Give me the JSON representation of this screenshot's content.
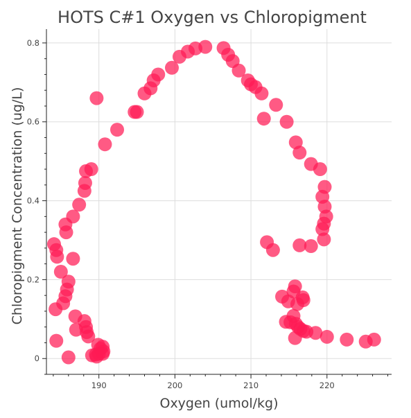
{
  "chart_data": {
    "type": "scatter",
    "title": "HOTS C#1 Oxygen vs Chloropigment",
    "xlabel": "Oxygen (umol/kg)",
    "ylabel": "Chloropigment Concentration (ug/L)",
    "xlim": [
      183.1,
      228.5
    ],
    "ylim": [
      -0.04,
      0.835
    ],
    "x_ticks": [
      190,
      200,
      210,
      220
    ],
    "y_ticks": [
      0,
      0.2,
      0.4,
      0.6,
      0.8
    ],
    "x_tick_labels": [
      "190",
      "200",
      "210",
      "220"
    ],
    "y_tick_labels": [
      "0",
      "0.2",
      "0.4",
      "0.6",
      "0.8"
    ],
    "x_minor_step": 2,
    "y_minor_step": 0.04,
    "grid": true,
    "marker_color": "#ff1a55",
    "marker_opacity": 0.72,
    "series": [
      {
        "name": "",
        "points": [
          [
            186.0,
            0.003
          ],
          [
            189.7,
            0.005
          ],
          [
            189.6,
            0.01
          ],
          [
            190.0,
            0.012
          ],
          [
            190.5,
            0.012
          ],
          [
            190.6,
            0.018
          ],
          [
            190.2,
            0.025
          ],
          [
            189.9,
            0.035
          ],
          [
            190.5,
            0.03
          ],
          [
            189.1,
            0.008
          ],
          [
            188.6,
            0.056
          ],
          [
            188.4,
            0.067
          ],
          [
            188.3,
            0.08
          ],
          [
            188.1,
            0.095
          ],
          [
            187.0,
            0.073
          ],
          [
            186.9,
            0.107
          ],
          [
            184.4,
            0.045
          ],
          [
            184.3,
            0.125
          ],
          [
            185.3,
            0.14
          ],
          [
            185.6,
            0.158
          ],
          [
            185.8,
            0.175
          ],
          [
            186.0,
            0.195
          ],
          [
            185.0,
            0.22
          ],
          [
            186.6,
            0.253
          ],
          [
            184.5,
            0.258
          ],
          [
            184.4,
            0.275
          ],
          [
            184.1,
            0.29
          ],
          [
            185.7,
            0.32
          ],
          [
            185.6,
            0.34
          ],
          [
            186.6,
            0.36
          ],
          [
            187.4,
            0.39
          ],
          [
            188.1,
            0.425
          ],
          [
            188.2,
            0.445
          ],
          [
            188.3,
            0.475
          ],
          [
            189.0,
            0.48
          ],
          [
            189.7,
            0.66
          ],
          [
            190.8,
            0.543
          ],
          [
            192.4,
            0.58
          ],
          [
            194.7,
            0.625
          ],
          [
            195.0,
            0.625
          ],
          [
            196.0,
            0.672
          ],
          [
            196.8,
            0.685
          ],
          [
            197.2,
            0.705
          ],
          [
            197.8,
            0.72
          ],
          [
            199.6,
            0.737
          ],
          [
            200.6,
            0.765
          ],
          [
            201.7,
            0.778
          ],
          [
            202.7,
            0.786
          ],
          [
            204.0,
            0.79
          ],
          [
            206.4,
            0.787
          ],
          [
            207.0,
            0.77
          ],
          [
            207.6,
            0.754
          ],
          [
            208.4,
            0.73
          ],
          [
            209.6,
            0.705
          ],
          [
            210.0,
            0.695
          ],
          [
            210.6,
            0.688
          ],
          [
            211.4,
            0.672
          ],
          [
            213.3,
            0.643
          ],
          [
            211.7,
            0.608
          ],
          [
            214.7,
            0.6
          ],
          [
            215.9,
            0.548
          ],
          [
            216.4,
            0.522
          ],
          [
            217.9,
            0.493
          ],
          [
            219.1,
            0.48
          ],
          [
            219.7,
            0.435
          ],
          [
            219.4,
            0.41
          ],
          [
            219.7,
            0.385
          ],
          [
            219.9,
            0.36
          ],
          [
            219.6,
            0.342
          ],
          [
            219.4,
            0.328
          ],
          [
            219.6,
            0.302
          ],
          [
            212.1,
            0.295
          ],
          [
            212.9,
            0.275
          ],
          [
            216.4,
            0.287
          ],
          [
            217.9,
            0.285
          ],
          [
            215.8,
            0.183
          ],
          [
            215.6,
            0.17
          ],
          [
            214.1,
            0.157
          ],
          [
            214.9,
            0.145
          ],
          [
            216.1,
            0.138
          ],
          [
            216.8,
            0.155
          ],
          [
            216.9,
            0.148
          ],
          [
            215.6,
            0.108
          ],
          [
            214.6,
            0.093
          ],
          [
            215.2,
            0.092
          ],
          [
            215.9,
            0.088
          ],
          [
            216.2,
            0.08
          ],
          [
            216.5,
            0.075
          ],
          [
            216.9,
            0.07
          ],
          [
            217.3,
            0.068
          ],
          [
            215.8,
            0.052
          ],
          [
            218.5,
            0.065
          ],
          [
            220.0,
            0.055
          ],
          [
            222.6,
            0.048
          ],
          [
            225.1,
            0.043
          ],
          [
            226.2,
            0.048
          ]
        ]
      }
    ]
  }
}
